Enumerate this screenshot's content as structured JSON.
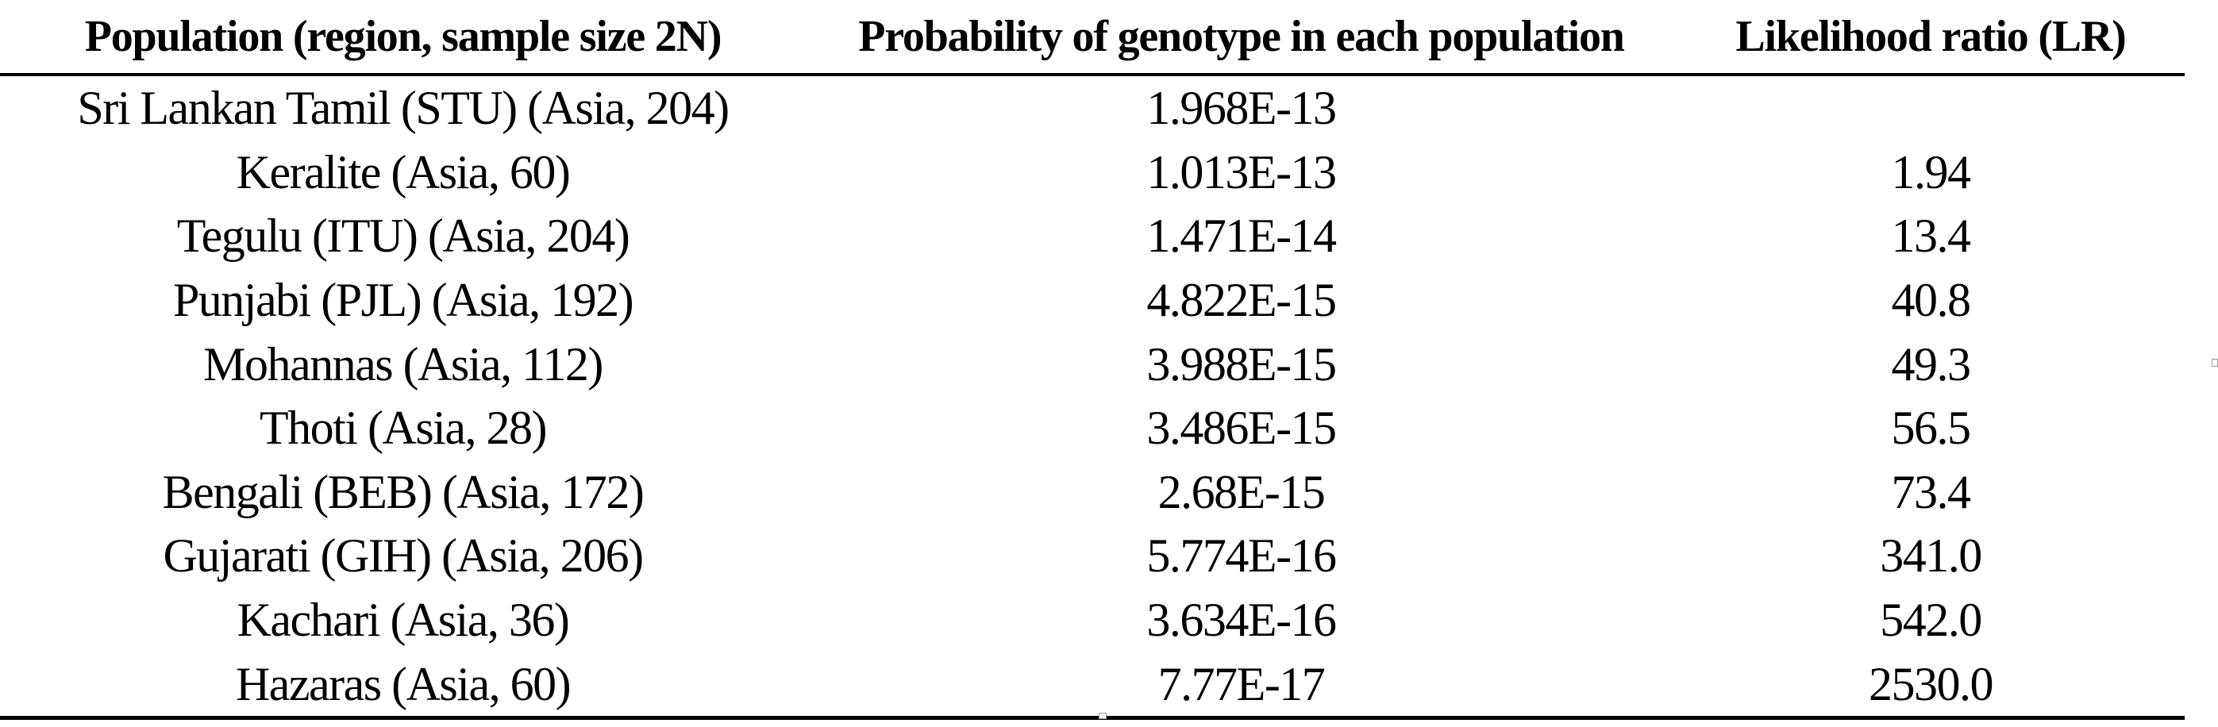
{
  "table": {
    "headers": [
      "Population (region, sample size 2N)",
      "Probability of genotype in each population",
      "Likelihood ratio (LR)"
    ],
    "rows": [
      {
        "population": "Sri Lankan Tamil (STU) (Asia, 204)",
        "probability": "1.968E-13",
        "lr": ""
      },
      {
        "population": "Keralite (Asia, 60)",
        "probability": "1.013E-13",
        "lr": "1.94"
      },
      {
        "population": "Tegulu (ITU) (Asia, 204)",
        "probability": "1.471E-14",
        "lr": "13.4"
      },
      {
        "population": "Punjabi (PJL) (Asia, 192)",
        "probability": "4.822E-15",
        "lr": "40.8"
      },
      {
        "population": "Mohannas (Asia, 112)",
        "probability": "3.988E-15",
        "lr": "49.3"
      },
      {
        "population": "Thoti (Asia, 28)",
        "probability": "3.486E-15",
        "lr": "56.5"
      },
      {
        "population": "Bengali (BEB) (Asia, 172)",
        "probability": "2.68E-15",
        "lr": "73.4"
      },
      {
        "population": "Gujarati (GIH) (Asia, 206)",
        "probability": "5.774E-16",
        "lr": "341.0"
      },
      {
        "population": "Kachari (Asia, 36)",
        "probability": "3.634E-16",
        "lr": "542.0"
      },
      {
        "population": "Hazaras (Asia, 60)",
        "probability": "7.77E-17",
        "lr": "2530.0"
      }
    ]
  }
}
